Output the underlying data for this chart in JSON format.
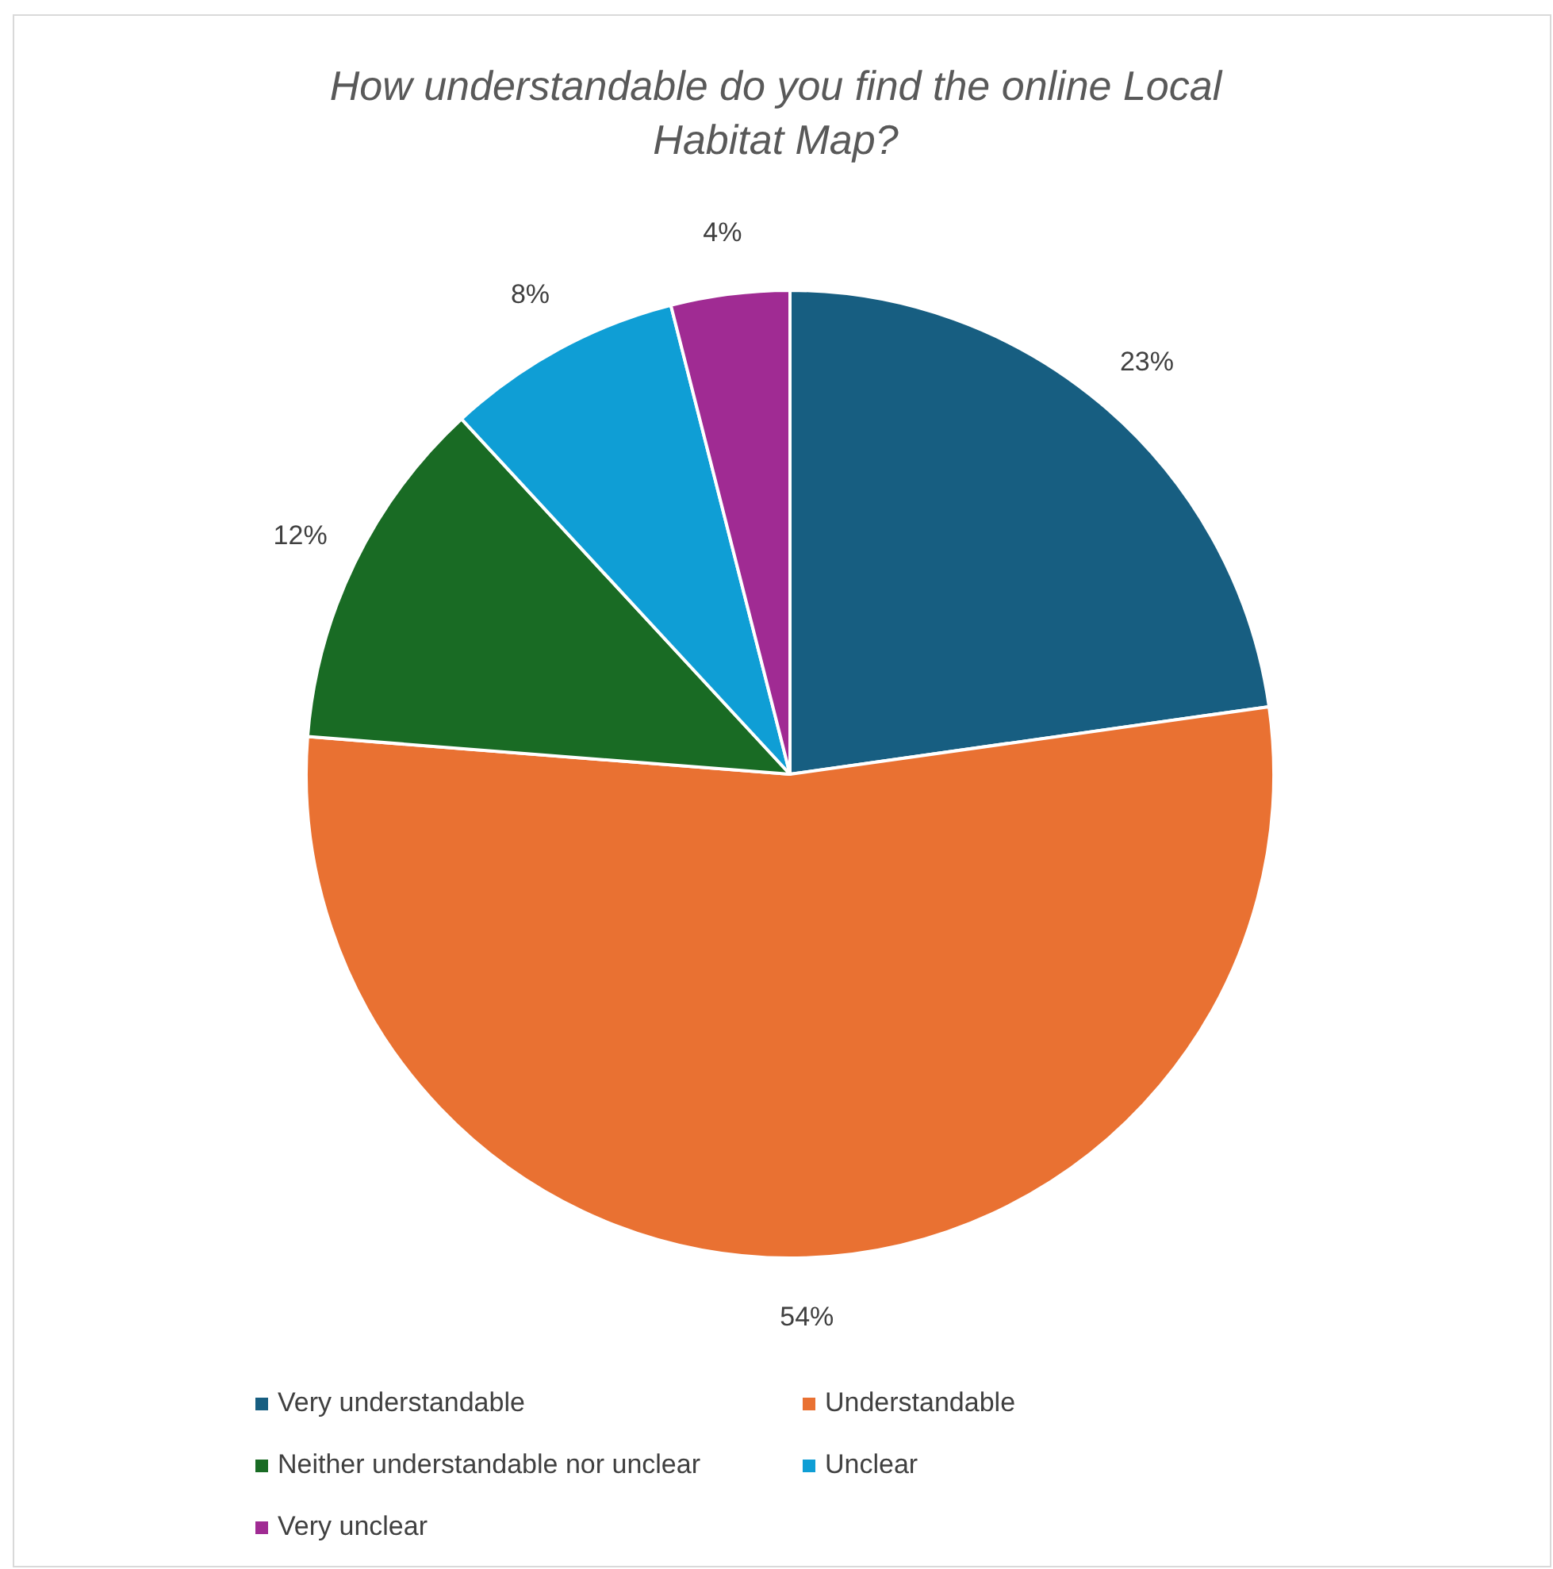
{
  "chart_data": {
    "type": "pie",
    "title": "How understandable do you find the online Local Habitat Map?",
    "categories": [
      "Very understandable",
      "Understandable",
      "Neither understandable nor unclear",
      "Unclear",
      "Very unclear"
    ],
    "values": [
      23,
      54,
      12,
      8,
      4
    ],
    "colors": [
      "#175e81",
      "#e97132",
      "#196b24",
      "#0f9ed5",
      "#a02b93"
    ],
    "value_labels": [
      "23%",
      "54%",
      "12%",
      "8%",
      "4%"
    ],
    "legend": "bottom"
  }
}
